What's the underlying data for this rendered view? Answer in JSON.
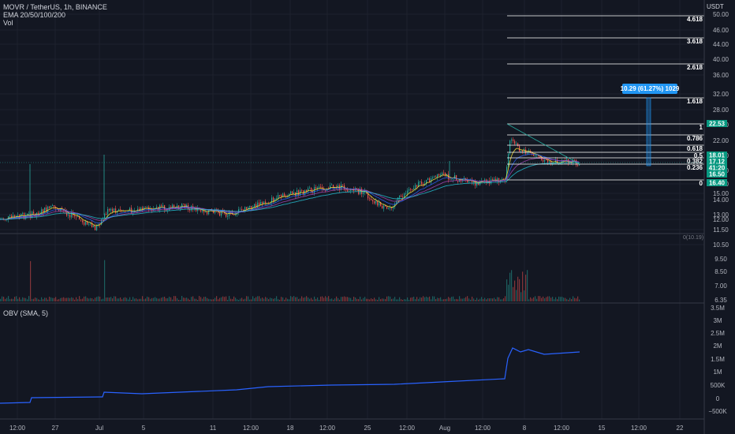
{
  "header": {
    "symbol_line": "MOVR / TetherUS, 1h, BINANCE",
    "ema_label": "EMA 20/50/100/200",
    "vol_label": "Vol",
    "currency": "USDT"
  },
  "price_axis": {
    "ticks": [
      "50.00",
      "46.00",
      "44.00",
      "40.00",
      "36.00",
      "32.00",
      "28.00",
      "25.00",
      "22.00",
      "20.00",
      "18.00",
      "16.00",
      "15.00",
      "14.00",
      "13.00",
      "12.00",
      "11.50",
      "10.50",
      "9.50",
      "8.50",
      "7.00",
      "6.35"
    ],
    "badges": [
      {
        "text": "22.53",
        "color": "#089981"
      },
      {
        "text": "18.01",
        "color": "#089981"
      },
      {
        "text": "17.12",
        "color": "#089981"
      },
      {
        "text": "41:20",
        "color": "#089981"
      },
      {
        "text": "16.50",
        "color": "#089981"
      },
      {
        "text": "16.40",
        "color": "#089981"
      }
    ]
  },
  "fibonacci": {
    "levels": [
      {
        "label": "4.618"
      },
      {
        "label": "3.618"
      },
      {
        "label": "2.618"
      },
      {
        "label": "1.618"
      },
      {
        "label": "1"
      },
      {
        "label": "0.786"
      },
      {
        "label": "0.618"
      },
      {
        "label": "0.5"
      },
      {
        "label": "0.382"
      },
      {
        "label": "0.236"
      },
      {
        "label": "0"
      }
    ]
  },
  "measure_label": "10.29 (61.27%) 1029",
  "volume_pane": {
    "label": "0(10.19)"
  },
  "obv_pane": {
    "label": "OBV (SMA, 5)",
    "ticks": [
      "3.5M",
      "3M",
      "2.5M",
      "2M",
      "1.5M",
      "1M",
      "500K",
      "0",
      "−500K"
    ]
  },
  "time_axis": {
    "ticks": [
      "12:00",
      "27",
      "Jul",
      "5",
      "11",
      "12:00",
      "18",
      "12:00",
      "25",
      "12:00",
      "Aug",
      "12:00",
      "8",
      "12:00",
      "15",
      "12:00",
      "22"
    ]
  },
  "colors": {
    "background": "#131722",
    "up": "#26a69a",
    "down": "#ef5350",
    "obv_line": "#2962ff",
    "fib_line": "#ffffff",
    "measure": "#2196f3"
  }
}
